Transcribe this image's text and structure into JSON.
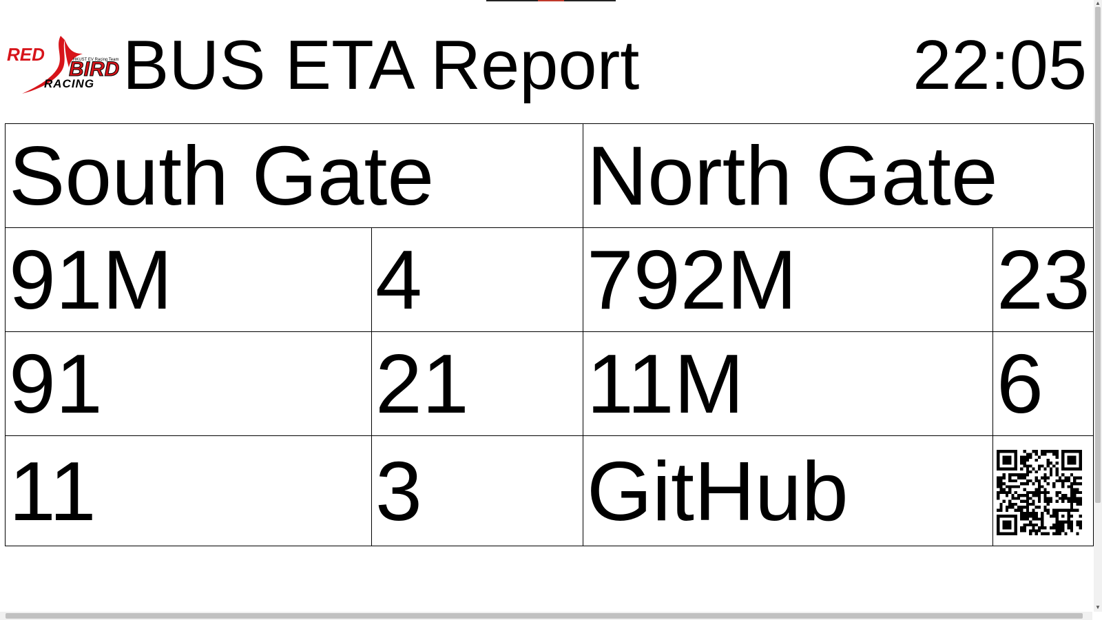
{
  "header": {
    "logo": {
      "text_red": "RED",
      "text_bird": "BIRD",
      "text_racing": "RACING",
      "tagline": "HKUST EV Racing Team",
      "accent_color": "#d7141a"
    },
    "title": "BUS ETA Report",
    "clock": "22:05"
  },
  "table": {
    "gates": [
      {
        "name": "South Gate"
      },
      {
        "name": "North Gate"
      }
    ],
    "rows": [
      {
        "south_route": "91M",
        "south_eta": "4",
        "north_route": "792M",
        "north_eta": "23"
      },
      {
        "south_route": "91",
        "south_eta": "21",
        "north_route": "11M",
        "north_eta": "6"
      },
      {
        "south_route": "11",
        "south_eta": "3",
        "north_label": "GitHub",
        "north_icon": "qr-code-icon"
      }
    ]
  },
  "colors": {
    "background": "#ffffff",
    "text": "#000000",
    "grid_line": "#000000",
    "logo_red": "#d7141a"
  }
}
